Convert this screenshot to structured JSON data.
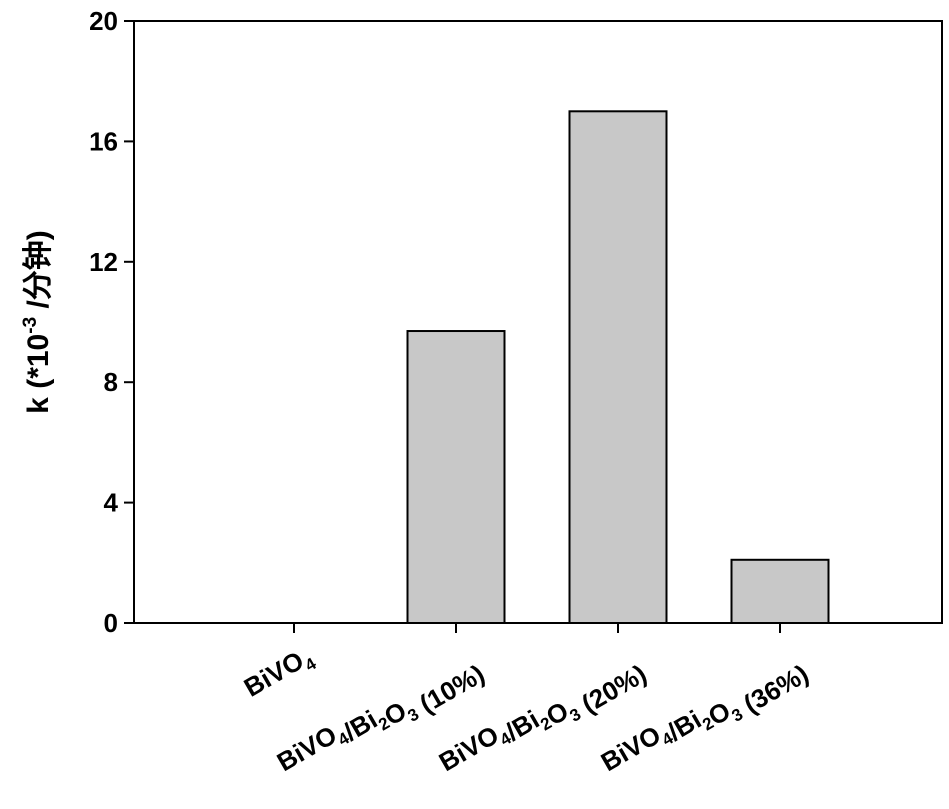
{
  "chart_data": {
    "type": "bar",
    "categories": [
      "BiVO4",
      "BiVO4/Bi2O3 (10%)",
      "BiVO4/Bi2O3 (20%)",
      "BiVO4/Bi2O3 (36%)"
    ],
    "values": [
      0,
      9.7,
      17.0,
      2.1
    ],
    "title": "",
    "xlabel": "",
    "ylabel": "k (*10-3 /分钟)",
    "ylim": [
      0,
      20
    ],
    "yticks": [
      0,
      4,
      8,
      12,
      16,
      20
    ],
    "grid": false,
    "bar_color": "#c8c8c8",
    "bar_edge_color": "#000000"
  }
}
